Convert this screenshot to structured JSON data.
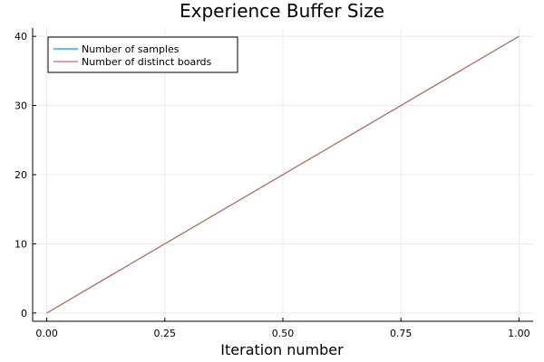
{
  "chart_data": {
    "type": "line",
    "title": "Experience Buffer Size",
    "xlabel": "Iteration number",
    "ylabel": "",
    "xlim": [
      -0.03,
      1.03
    ],
    "ylim": [
      -1.2,
      41.2
    ],
    "x_ticks": [
      0.0,
      0.25,
      0.5,
      0.75,
      1.0
    ],
    "x_tick_labels": [
      "0.00",
      "0.25",
      "0.50",
      "0.75",
      "1.00"
    ],
    "y_ticks": [
      0,
      10,
      20,
      30,
      40
    ],
    "y_tick_labels": [
      "0",
      "10",
      "20",
      "30",
      "40"
    ],
    "grid": true,
    "legend_position": "top-left",
    "series": [
      {
        "name": "Number of samples",
        "color": "#009AFA",
        "x": [
          0,
          1
        ],
        "y": [
          0,
          40
        ]
      },
      {
        "name": "Number of distinct boards",
        "color": "#C0705A",
        "x": [
          0,
          1
        ],
        "y": [
          0,
          40
        ]
      }
    ]
  }
}
